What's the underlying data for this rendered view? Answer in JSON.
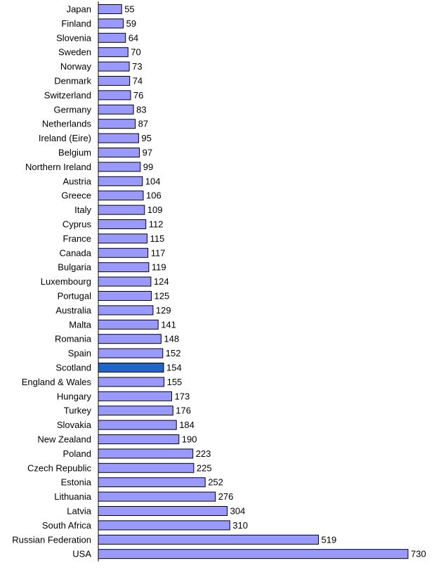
{
  "chart_data": {
    "type": "bar",
    "orientation": "horizontal",
    "categories": [
      "Japan",
      "Finland",
      "Slovenia",
      "Sweden",
      "Norway",
      "Denmark",
      "Switzerland",
      "Germany",
      "Netherlands",
      "Ireland (Eire)",
      "Belgium",
      "Northern Ireland",
      "Austria",
      "Greece",
      "Italy",
      "Cyprus",
      "France",
      "Canada",
      "Bulgaria",
      "Luxembourg",
      "Portugal",
      "Australia",
      "Malta",
      "Romania",
      "Spain",
      "Scotland",
      "England & Wales",
      "Hungary",
      "Turkey",
      "Slovakia",
      "New Zealand",
      "Poland",
      "Czech Republic",
      "Estonia",
      "Lithuania",
      "Latvia",
      "South Africa",
      "Russian Federation",
      "USA"
    ],
    "values": [
      55,
      59,
      64,
      70,
      73,
      74,
      76,
      83,
      87,
      95,
      97,
      99,
      104,
      106,
      109,
      112,
      115,
      117,
      119,
      124,
      125,
      129,
      141,
      148,
      152,
      154,
      155,
      173,
      176,
      184,
      190,
      223,
      225,
      252,
      276,
      304,
      310,
      519,
      730
    ],
    "title": "",
    "xlabel": "",
    "ylabel": "",
    "xlim": [
      0,
      730
    ],
    "grid": false,
    "legend": "none",
    "highlight": "Scotland",
    "colors": {
      "bar": "#9999ff",
      "highlight": "#1f66c8",
      "bar_edge": "#000000",
      "axis": "#000000"
    }
  }
}
